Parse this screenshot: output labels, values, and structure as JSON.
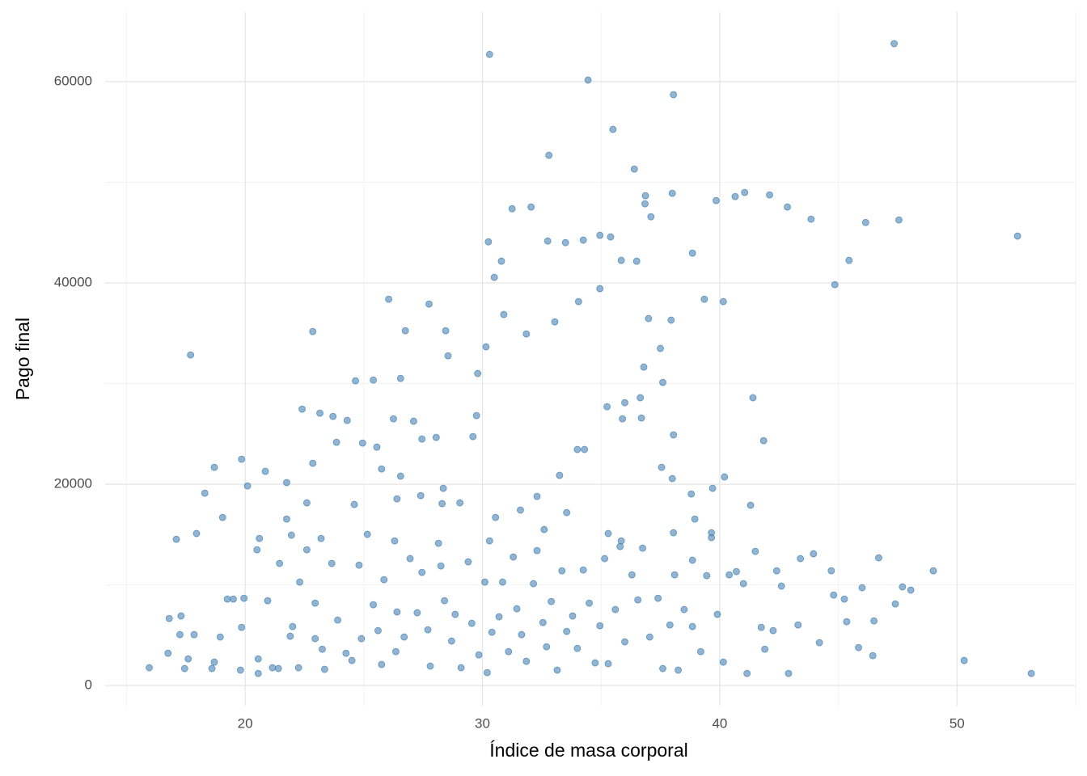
{
  "chart_data": {
    "type": "scatter",
    "x_label": "Índice de masa corporal",
    "y_label": "Pago final",
    "color": "#4682b4",
    "xlim": [
      14.1,
      55.0
    ],
    "ylim": [
      -2000,
      66900
    ],
    "xticks": [
      20,
      30,
      40,
      50
    ],
    "yticks": [
      0,
      20000,
      40000,
      60000
    ],
    "x_minor_grid": [
      15,
      25,
      35,
      45,
      55
    ],
    "y_minor_grid": [
      10000,
      30000,
      50000
    ],
    "grid": true,
    "x": [
      47.35,
      30.3,
      34.45,
      38.05,
      35.5,
      32.8,
      36.4,
      52.55,
      53.13,
      50.3,
      15.96,
      17.7,
      22.85,
      26.05,
      27.75,
      47.55,
      46.15,
      45.45,
      44.85,
      43.85,
      42.85,
      42.1,
      41.05,
      39.85,
      40.65,
      41.4,
      41.85,
      40.15,
      39.35,
      38.85,
      38.0,
      36.87,
      36.85,
      37.1,
      32.05,
      31.25,
      30.25,
      30.8,
      32.75,
      33.5,
      34.25,
      34.95,
      35.85,
      35.4,
      34.95,
      36.5,
      34.05,
      33.05,
      31.85,
      30.9,
      30.5,
      30.15,
      29.8,
      29.6,
      37.0,
      37.95,
      37.5,
      37.6,
      36.8,
      36.65,
      36.0,
      35.9,
      36.7,
      35.25,
      38.05,
      38.8,
      39.7,
      40.2,
      37.55,
      38.0,
      34.3,
      34.0,
      33.25,
      32.3,
      31.6,
      30.55,
      29.75,
      28.55,
      28.45,
      26.75,
      26.55,
      25.4,
      24.65,
      19.85,
      18.7,
      18.3,
      17.95,
      17.1,
      20.1,
      20.85,
      21.75,
      22.4,
      23.15,
      23.7,
      24.3,
      26.25,
      27.1,
      28.05,
      27.45,
      23.85,
      24.95,
      25.55,
      22.85,
      22.6,
      24.6,
      25.75,
      26.55,
      26.4,
      28.35,
      28.3,
      27.4,
      29.05,
      21.75,
      19.05,
      20.6,
      21.95,
      23.2,
      25.15,
      26.3,
      28.15,
      30.3,
      32.6,
      33.55,
      35.3,
      35.85,
      38.05,
      38.95,
      39.65,
      41.3,
      17.25,
      17.3,
      16.8,
      16.75,
      17.45,
      17.85,
      17.6,
      18.7,
      18.6,
      18.95,
      19.25,
      19.5,
      19.8,
      19.85,
      19.95,
      20.55,
      20.55,
      21.15,
      20.5,
      20.95,
      21.45,
      21.9,
      21.4,
      22.0,
      22.25,
      22.3,
      22.6,
      22.95,
      22.95,
      23.25,
      23.35,
      23.65,
      23.9,
      24.25,
      24.5,
      24.8,
      24.9,
      25.4,
      25.6,
      25.75,
      25.85,
      26.35,
      26.4,
      26.7,
      26.95,
      27.25,
      27.45,
      27.7,
      27.8,
      28.25,
      28.4,
      28.7,
      28.85,
      29.1,
      29.4,
      29.55,
      29.85,
      30.1,
      30.2,
      30.4,
      30.7,
      30.85,
      31.1,
      31.3,
      31.45,
      31.65,
      31.85,
      32.15,
      32.3,
      32.55,
      32.7,
      32.9,
      33.15,
      33.35,
      33.55,
      33.8,
      34.0,
      34.25,
      34.5,
      34.75,
      34.95,
      35.15,
      35.3,
      35.6,
      35.8,
      36.0,
      36.3,
      36.55,
      36.75,
      37.05,
      37.4,
      37.6,
      37.9,
      38.1,
      38.25,
      38.5,
      38.85,
      38.85,
      39.2,
      39.45,
      39.65,
      39.9,
      40.15,
      40.4,
      40.7,
      41.0,
      41.15,
      41.5,
      41.75,
      41.9,
      42.25,
      42.4,
      42.6,
      42.9,
      43.3,
      43.4,
      43.95,
      44.2,
      44.8,
      44.7,
      45.25,
      45.35,
      45.85,
      46.0,
      46.45,
      46.5,
      46.7,
      47.7,
      48.05,
      47.4,
      49.0
    ],
    "values": [
      63770,
      62700,
      60150,
      58700,
      55250,
      52680,
      51310,
      44650,
      1200,
      2490,
      1770,
      32840,
      35170,
      38380,
      37900,
      46250,
      46000,
      42240,
      39830,
      46330,
      47540,
      48740,
      48980,
      48180,
      48580,
      28590,
      24330,
      38140,
      38380,
      42960,
      48900,
      48660,
      47860,
      46570,
      47540,
      47370,
      44080,
      42160,
      44160,
      44000,
      44250,
      44730,
      42240,
      44570,
      39430,
      42160,
      38140,
      36130,
      34930,
      36860,
      40550,
      33650,
      31000,
      24730,
      36460,
      36300,
      33490,
      30110,
      31640,
      28590,
      28100,
      26500,
      26580,
      27700,
      24900,
      19030,
      19590,
      20720,
      21680,
      20560,
      23450,
      23450,
      20880,
      18790,
      17430,
      16700,
      26820,
      32760,
      35250,
      35250,
      30510,
      30350,
      30270,
      22480,
      21680,
      19110,
      15100,
      14530,
      19830,
      21280,
      20160,
      27460,
      27060,
      26740,
      26340,
      26500,
      26260,
      24650,
      24490,
      24170,
      24090,
      23690,
      22080,
      18150,
      17990,
      21520,
      20800,
      18550,
      19590,
      18070,
      18870,
      18150,
      16540,
      16700,
      14610,
      14940,
      14610,
      15020,
      14370,
      14130,
      14370,
      15500,
      17180,
      15100,
      14370,
      15180,
      16540,
      15180,
      17910,
      5060,
      6910,
      6660,
      3210,
      1690,
      5060,
      2650,
      2330,
      1690,
      4820,
      8590,
      8590,
      1530,
      5780,
      8670,
      2650,
      1200,
      1770,
      13490,
      8430,
      12130,
      4900,
      1690,
      5860,
      1770,
      10280,
      13490,
      4660,
      8190,
      3610,
      1610,
      12130,
      6500,
      3210,
      2490,
      11960,
      4660,
      8030,
      5460,
      2090,
      10520,
      3370,
      7310,
      4820,
      12610,
      7230,
      11240,
      5540,
      1930,
      11880,
      8430,
      4420,
      7070,
      1770,
      12290,
      6180,
      3050,
      10280,
      1280,
      5300,
      6830,
      10280,
      3370,
      12770,
      7630,
      5060,
      2410,
      10120,
      13410,
      6260,
      3850,
      8350,
      1530,
      11400,
      5380,
      6910,
      3690,
      11480,
      8190,
      2250,
      5940,
      12610,
      2170,
      7550,
      13810,
      4340,
      11000,
      8510,
      13650,
      4820,
      8670,
      1690,
      6020,
      11000,
      1530,
      7550,
      5860,
      12450,
      3370,
      10920,
      14690,
      7070,
      2330,
      11000,
      11320,
      10120,
      1200,
      13330,
      5780,
      3610,
      5460,
      11400,
      9880,
      1200,
      6020,
      12610,
      13090,
      4260,
      8990,
      11400,
      8590,
      6340,
      3770,
      9720,
      2970,
      6420,
      12690,
      9800,
      9480,
      8110,
      11400
    ]
  }
}
